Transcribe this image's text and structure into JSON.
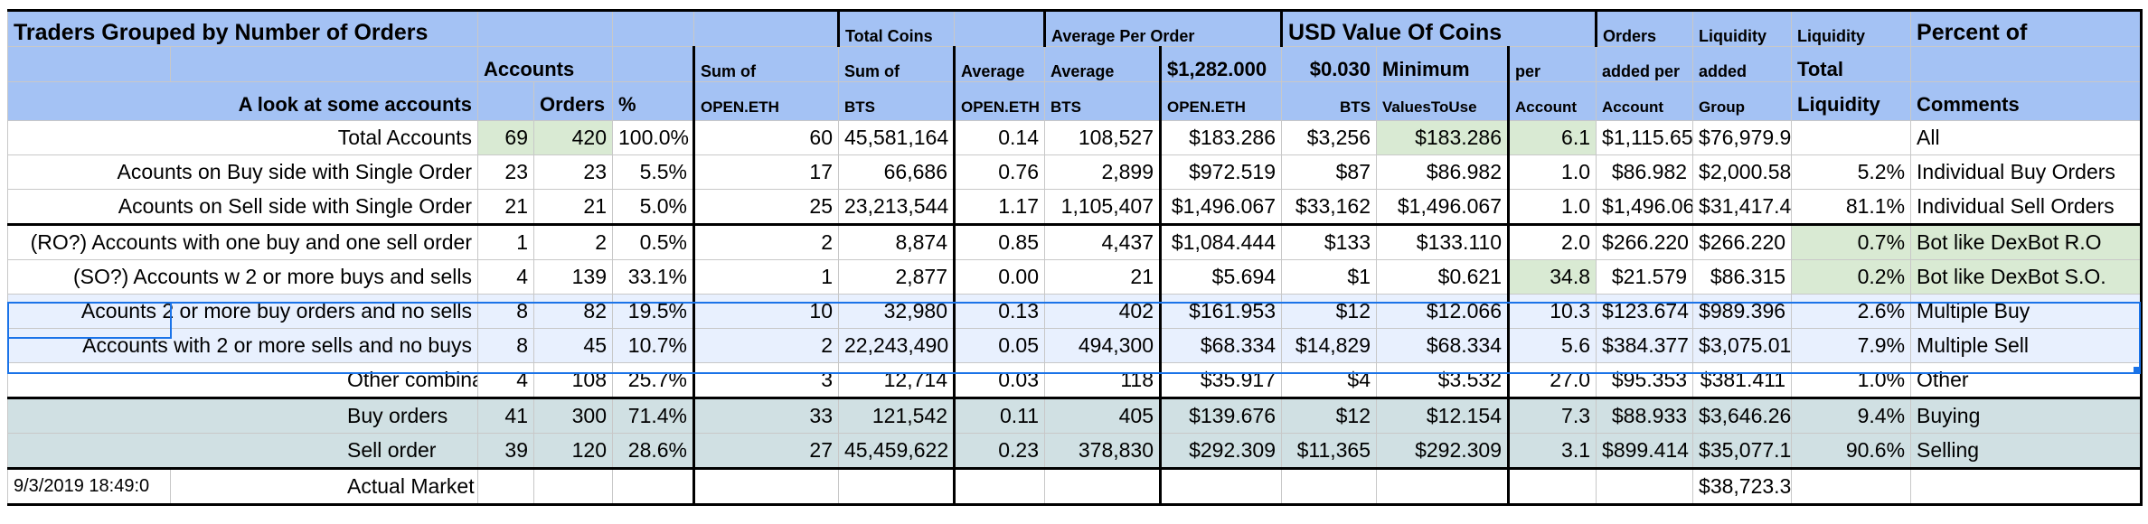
{
  "header": {
    "row1": [
      "Traders Grouped by Number of Orders",
      "",
      "",
      "",
      "Total Coins",
      "",
      "Average Per Order",
      "",
      "USD Value Of Coins",
      "",
      "",
      "Orders",
      "Liquidity",
      "Liquidity",
      "Percent of",
      ""
    ],
    "row2": [
      "",
      "Accounts",
      "",
      "Sum of",
      "Sum of",
      "Average",
      "Average",
      "$1,282.000",
      "$0.030",
      "Minimum",
      "per",
      "added per",
      "added",
      "Total",
      ""
    ],
    "row3": [
      "A look at some accounts",
      "",
      "Orders",
      "%",
      "OPEN.ETH",
      "BTS",
      "OPEN.ETH",
      "BTS",
      "OPEN.ETH",
      "BTS",
      "ValuesToUse",
      "Account",
      "Account",
      "Group",
      "Liquidity",
      "Comments"
    ]
  },
  "rows": [
    {
      "label": "Total Accounts",
      "accounts": "69",
      "orders": "420",
      "pct": "100.0%",
      "sum_eth": "60",
      "sum_bts": "45,581,164",
      "avg_eth": "0.14",
      "avg_bts": "108,527",
      "usd_eth": "$183.286",
      "usd_bts": "$3,256",
      "min": "$183.286",
      "orders_per": "6.1",
      "liq_acct": "$1,115.65",
      "liq_group": "$76,979.9",
      "pct_total": "",
      "comment": "All"
    },
    {
      "label": "Acounts on Buy side with Single Order",
      "accounts": "23",
      "orders": "23",
      "pct": "5.5%",
      "sum_eth": "17",
      "sum_bts": "66,686",
      "avg_eth": "0.76",
      "avg_bts": "2,899",
      "usd_eth": "$972.519",
      "usd_bts": "$87",
      "min": "$86.982",
      "orders_per": "1.0",
      "liq_acct": "$86.982",
      "liq_group": "$2,000.58",
      "pct_total": "5.2%",
      "comment": "Individual Buy Orders"
    },
    {
      "label": "Acounts on Sell side with Single Order",
      "accounts": "21",
      "orders": "21",
      "pct": "5.0%",
      "sum_eth": "25",
      "sum_bts": "23,213,544",
      "avg_eth": "1.17",
      "avg_bts": "1,105,407",
      "usd_eth": "$1,496.067",
      "usd_bts": "$33,162",
      "min": "$1,496.067",
      "orders_per": "1.0",
      "liq_acct": "$1,496.06",
      "liq_group": "$31,417.4",
      "pct_total": "81.1%",
      "comment": "Individual Sell Orders"
    },
    {
      "label": "(RO?) Accounts with one buy and one sell order",
      "accounts": "1",
      "orders": "2",
      "pct": "0.5%",
      "sum_eth": "2",
      "sum_bts": "8,874",
      "avg_eth": "0.85",
      "avg_bts": "4,437",
      "usd_eth": "$1,084.444",
      "usd_bts": "$133",
      "min": "$133.110",
      "orders_per": "2.0",
      "liq_acct": "$266.220",
      "liq_group": "$266.220",
      "pct_total": "0.7%",
      "comment": "Bot like DexBot R.O"
    },
    {
      "label": "(SO?) Accounts w 2 or more buys and sells",
      "accounts": "4",
      "orders": "139",
      "pct": "33.1%",
      "sum_eth": "1",
      "sum_bts": "2,877",
      "avg_eth": "0.00",
      "avg_bts": "21",
      "usd_eth": "$5.694",
      "usd_bts": "$1",
      "min": "$0.621",
      "orders_per": "34.8",
      "liq_acct": "$21.579",
      "liq_group": "$86.315",
      "pct_total": "0.2%",
      "comment": "Bot like DexBot S.O."
    },
    {
      "label": "Acounts 2 or more buy orders and no sells",
      "accounts": "8",
      "orders": "82",
      "pct": "19.5%",
      "sum_eth": "10",
      "sum_bts": "32,980",
      "avg_eth": "0.13",
      "avg_bts": "402",
      "usd_eth": "$161.953",
      "usd_bts": "$12",
      "min": "$12.066",
      "orders_per": "10.3",
      "liq_acct": "$123.674",
      "liq_group": "$989.396",
      "pct_total": "2.6%",
      "comment": "Multiple Buy"
    },
    {
      "label": "Accounts with 2 or more sells and no buys",
      "accounts": "8",
      "orders": "45",
      "pct": "10.7%",
      "sum_eth": "2",
      "sum_bts": "22,243,490",
      "avg_eth": "0.05",
      "avg_bts": "494,300",
      "usd_eth": "$68.334",
      "usd_bts": "$14,829",
      "min": "$68.334",
      "orders_per": "5.6",
      "liq_acct": "$384.377",
      "liq_group": "$3,075.01",
      "pct_total": "7.9%",
      "comment": "Multiple Sell"
    },
    {
      "label": "Other combina",
      "accounts": "4",
      "orders": "108",
      "pct": "25.7%",
      "sum_eth": "3",
      "sum_bts": "12,714",
      "avg_eth": "0.03",
      "avg_bts": "118",
      "usd_eth": "$35.917",
      "usd_bts": "$4",
      "min": "$3.532",
      "orders_per": "27.0",
      "liq_acct": "$95.353",
      "liq_group": "$381.411",
      "pct_total": "1.0%",
      "comment": "Other"
    },
    {
      "label": "Buy orders",
      "accounts": "41",
      "orders": "300",
      "pct": "71.4%",
      "sum_eth": "33",
      "sum_bts": "121,542",
      "avg_eth": "0.11",
      "avg_bts": "405",
      "usd_eth": "$139.676",
      "usd_bts": "$12",
      "min": "$12.154",
      "orders_per": "7.3",
      "liq_acct": "$88.933",
      "liq_group": "$3,646.26",
      "pct_total": "9.4%",
      "comment": "Buying"
    },
    {
      "label": "Sell order",
      "accounts": "39",
      "orders": "120",
      "pct": "28.6%",
      "sum_eth": "27",
      "sum_bts": "45,459,622",
      "avg_eth": "0.23",
      "avg_bts": "378,830",
      "usd_eth": "$292.309",
      "usd_bts": "$11,365",
      "min": "$292.309",
      "orders_per": "3.1",
      "liq_acct": "$899.414",
      "liq_group": "$35,077.1",
      "pct_total": "90.6%",
      "comment": "Selling"
    }
  ],
  "footer": {
    "timestamp": "9/3/2019 18:49:0",
    "label": "Actual Market Size",
    "market_size": "$38,723.3"
  },
  "colors": {
    "header": "#a4c2f4",
    "green": "#d9ead3",
    "selection": "#1a73e8",
    "teal": "#d0e0e3"
  }
}
